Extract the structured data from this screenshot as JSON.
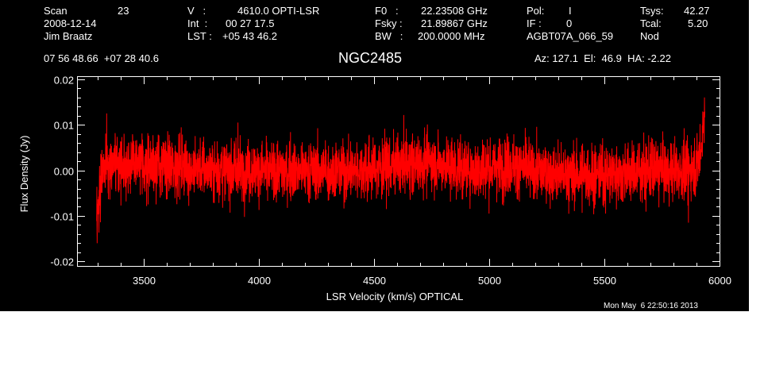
{
  "header": {
    "col1": {
      "row1_label": "Scan",
      "row1_value": "23",
      "row2": "2008-12-14",
      "row3": "Jim Braatz"
    },
    "col2": {
      "row1_label": "V   :",
      "row1_value": "4610.0 OPTI-LSR",
      "row2_label": "Int  :",
      "row2_value": "00 27 17.5",
      "row3_label": "LST : ",
      "row3_value": "+05 43 46.2"
    },
    "col3": {
      "row1_label": "F0   :",
      "row1_value": "22.23508 GHz",
      "row2_label": "Fsky :",
      "row2_value": "21.89867 GHz",
      "row3_label": "BW   :",
      "row3_value": "200.0000 MHz"
    },
    "col4": {
      "row1_label": "Pol:",
      "row1_value": "I",
      "row2_label": "IF :",
      "row2_value": "0",
      "row3": "AGBT07A_066_59"
    },
    "col5": {
      "row1_label": "Tsys:",
      "row1_value": "42.27",
      "row2_label": "Tcal:",
      "row2_value": "5.20",
      "row3": "Nod"
    },
    "coordinates": "07 56 48.66  +07 28 40.6",
    "source": "NGC2485",
    "pointing": "Az: 127.1  El:  46.9  HA: -2.22",
    "timestamp": "Mon May  6 22:50:16 2013"
  },
  "chart_data": {
    "type": "line",
    "title": "NGC2485",
    "xlabel": "LSR Velocity (km/s) OPTICAL",
    "ylabel": "Flux Density (Jy)",
    "xlim": [
      3215,
      6000
    ],
    "ylim": [
      -0.021,
      0.0205
    ],
    "xticks": [
      3500,
      4000,
      4500,
      5000,
      5500,
      6000
    ],
    "yticks": [
      -0.02,
      -0.01,
      0.0,
      0.01,
      0.02
    ],
    "xtick_labels": [
      "3500",
      "4000",
      "4500",
      "5000",
      "5500",
      "6000"
    ],
    "ytick_labels": [
      "-0.02",
      "-0.01",
      "0.00",
      "0.01",
      "0.02"
    ],
    "grid": false,
    "series": [
      {
        "color": "#ff0000",
        "x_start": 3297,
        "x_end": 5936,
        "noise_rms_jy": 0.0032,
        "baseline_profile": [
          {
            "x": 3297,
            "y": -0.0125
          },
          {
            "x": 3305,
            "y": -0.007
          },
          {
            "x": 3320,
            "y": 0.001
          },
          {
            "x": 3400,
            "y": 0.0015
          },
          {
            "x": 3600,
            "y": 0.001
          },
          {
            "x": 3800,
            "y": 0.0
          },
          {
            "x": 4000,
            "y": 0.0
          },
          {
            "x": 4200,
            "y": 0.0
          },
          {
            "x": 4400,
            "y": 0.0
          },
          {
            "x": 4600,
            "y": 0.001
          },
          {
            "x": 4750,
            "y": 0.002
          },
          {
            "x": 4900,
            "y": 0.0
          },
          {
            "x": 5100,
            "y": 0.001
          },
          {
            "x": 5300,
            "y": -0.001
          },
          {
            "x": 5500,
            "y": -0.001
          },
          {
            "x": 5700,
            "y": 0.0
          },
          {
            "x": 5860,
            "y": 0.0
          },
          {
            "x": 5905,
            "y": 0.0015
          },
          {
            "x": 5925,
            "y": 0.007
          },
          {
            "x": 5936,
            "y": 0.013
          }
        ],
        "notable_points": [
          {
            "x": 3299,
            "y": -0.016
          },
          {
            "x": 3340,
            "y": 0.0125
          },
          {
            "x": 3910,
            "y": 0.0105
          },
          {
            "x": 5865,
            "y": -0.0115
          },
          {
            "x": 5935,
            "y": 0.016
          }
        ]
      }
    ]
  }
}
